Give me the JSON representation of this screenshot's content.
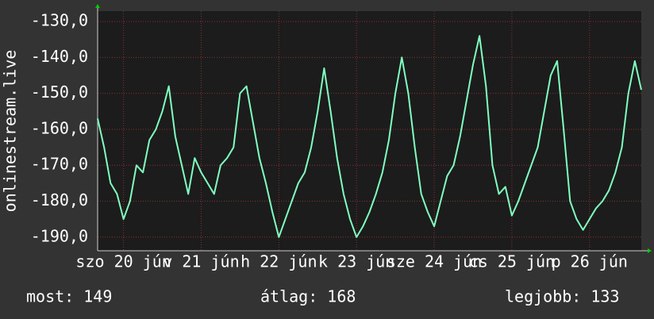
{
  "chart_data": {
    "type": "line",
    "ylabel": "onlinestream.live",
    "xlim": [
      0,
      168
    ],
    "ylim": [
      -193.8,
      -127.1
    ],
    "yticks": [
      {
        "value": -130,
        "label": "-130,0"
      },
      {
        "value": -140,
        "label": "-140,0"
      },
      {
        "value": -150,
        "label": "-150,0"
      },
      {
        "value": -160,
        "label": "-160,0"
      },
      {
        "value": -170,
        "label": "-170,0"
      },
      {
        "value": -180,
        "label": "-180,0"
      },
      {
        "value": -190,
        "label": "-190,0"
      }
    ],
    "xticks": [
      {
        "value": 8,
        "label": "szo 20 jún"
      },
      {
        "value": 32,
        "label": "v 21 jún"
      },
      {
        "value": 56,
        "label": "h 22 jún"
      },
      {
        "value": 80,
        "label": "k 23 jún"
      },
      {
        "value": 104,
        "label": "sze 24 jún"
      },
      {
        "value": 128,
        "label": "cs 25 jún"
      },
      {
        "value": 152,
        "label": "p 26 jún"
      }
    ],
    "grid": true,
    "x": [
      0,
      2,
      4,
      6,
      8,
      10,
      12,
      14,
      16,
      18,
      20,
      22,
      24,
      26,
      28,
      30,
      32,
      34,
      36,
      38,
      40,
      42,
      44,
      46,
      48,
      50,
      52,
      54,
      56,
      58,
      60,
      62,
      64,
      66,
      68,
      70,
      72,
      74,
      76,
      78,
      80,
      82,
      84,
      86,
      88,
      90,
      92,
      94,
      96,
      98,
      100,
      102,
      104,
      106,
      108,
      110,
      112,
      114,
      116,
      118,
      120,
      122,
      124,
      126,
      128,
      130,
      132,
      134,
      136,
      138,
      140,
      142,
      144,
      146,
      148,
      150,
      152,
      154,
      156,
      158,
      160,
      162,
      164,
      166,
      168
    ],
    "series": [
      {
        "color": "#80ffc0",
        "values": [
          -157,
          -165,
          -175,
          -178,
          -185,
          -180,
          -170,
          -172,
          -163,
          -160,
          -155,
          -148,
          -162,
          -170,
          -178,
          -168,
          -172,
          -175,
          -178,
          -170,
          -168,
          -165,
          -150,
          -148,
          -158,
          -168,
          -175,
          -183,
          -190,
          -185,
          -180,
          -175,
          -172,
          -165,
          -155,
          -143,
          -155,
          -168,
          -178,
          -185,
          -190,
          -187,
          -183,
          -178,
          -172,
          -163,
          -150,
          -140,
          -150,
          -165,
          -178,
          -183,
          -187,
          -180,
          -173,
          -170,
          -162,
          -152,
          -142,
          -134,
          -148,
          -170,
          -178,
          -176,
          -184,
          -180,
          -175,
          -170,
          -165,
          -155,
          -145,
          -141,
          -160,
          -180,
          -185,
          -188,
          -185,
          -182,
          -180,
          -177,
          -172,
          -165,
          -150,
          -141,
          -149
        ]
      }
    ],
    "stats": [
      "most: 149",
      "átlag: 168",
      "legjobb: 133"
    ]
  }
}
